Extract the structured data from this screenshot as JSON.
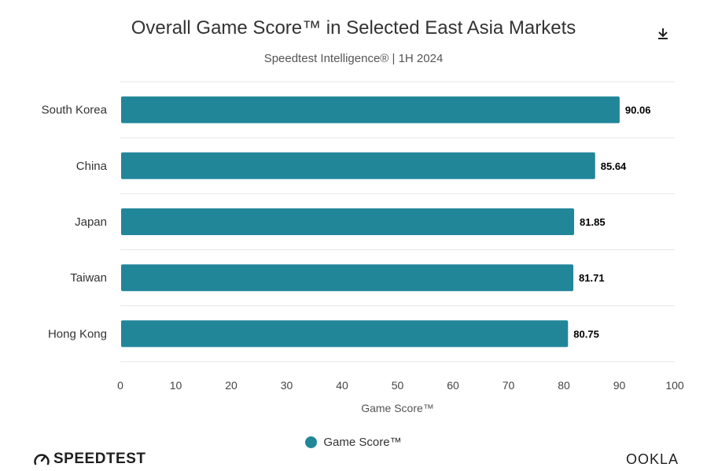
{
  "header": {
    "title": "Overall Game Score™ in Selected East Asia Markets",
    "subtitle": "Speedtest Intelligence® | 1H 2024",
    "download_icon": "download-icon"
  },
  "chart_data": {
    "type": "bar",
    "orientation": "horizontal",
    "categories": [
      "South Korea",
      "China",
      "Japan",
      "Taiwan",
      "Hong Kong"
    ],
    "series": [
      {
        "name": "Game Score™",
        "values": [
          90.06,
          85.64,
          81.85,
          81.71,
          80.75
        ],
        "color": "#228699"
      }
    ],
    "data_labels": [
      "90.06",
      "85.64",
      "81.85",
      "81.71",
      "80.75"
    ],
    "xlabel": "Game Score™",
    "xlim": [
      0,
      100
    ],
    "xticks": [
      0,
      10,
      20,
      30,
      40,
      50,
      60,
      70,
      80,
      90,
      100
    ],
    "grid": "horizontal-separators",
    "legend": "bottom-center"
  },
  "legend": {
    "label": "Game Score™",
    "color": "#228699"
  },
  "footer": {
    "left_brand": "SPEEDTEST",
    "right_brand": "OOKLA"
  }
}
